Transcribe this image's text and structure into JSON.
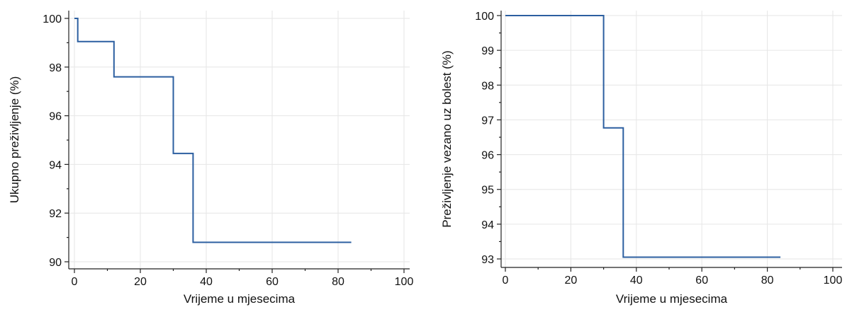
{
  "chart_data": [
    {
      "type": "line",
      "step": true,
      "xlabel": "Vrijeme u mjesecima",
      "ylabel": "Ukupno preživljenje (%)",
      "xlim": [
        0,
        100
      ],
      "ylim": [
        90,
        100
      ],
      "xticks": [
        0,
        20,
        40,
        60,
        80,
        100
      ],
      "yticks": [
        90,
        92,
        94,
        96,
        98,
        100
      ],
      "grid": true,
      "series": [
        {
          "color": "#2c5fa0",
          "x": [
            0,
            1,
            1,
            12,
            12,
            30,
            30,
            36,
            36,
            84
          ],
          "y": [
            100,
            100,
            99.05,
            99.05,
            97.6,
            97.6,
            94.45,
            94.45,
            90.8,
            90.8
          ]
        }
      ]
    },
    {
      "type": "line",
      "step": true,
      "xlabel": "Vrijeme u mjesecima",
      "ylabel": "Preživljenje vezano uz bolest (%)",
      "xlim": [
        0,
        100
      ],
      "ylim": [
        93,
        100
      ],
      "xticks": [
        0,
        20,
        40,
        60,
        80,
        100
      ],
      "yticks": [
        93,
        94,
        95,
        96,
        97,
        98,
        99,
        100
      ],
      "grid": true,
      "series": [
        {
          "color": "#2c5fa0",
          "x": [
            0,
            30,
            30,
            36,
            36,
            84
          ],
          "y": [
            100,
            100,
            96.77,
            96.77,
            93.05,
            93.05
          ]
        }
      ]
    }
  ]
}
